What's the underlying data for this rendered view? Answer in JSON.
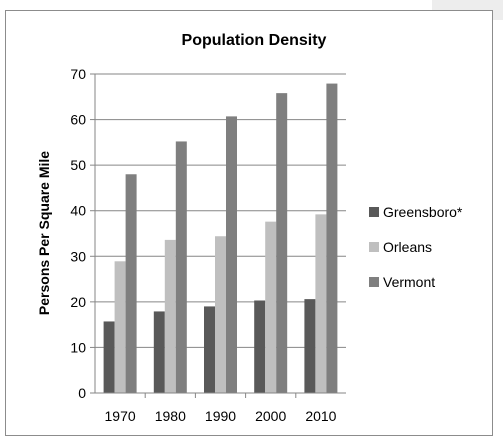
{
  "chart_data": {
    "type": "bar",
    "title": "Population Density",
    "xlabel": "",
    "ylabel": "Persons Per Square Mile",
    "categories": [
      "1970",
      "1980",
      "1990",
      "2000",
      "2010"
    ],
    "ylim": [
      0,
      70
    ],
    "yticks": [
      0,
      10,
      20,
      30,
      40,
      50,
      60,
      70
    ],
    "grid": true,
    "legend": "right",
    "series": [
      {
        "name": "Greensboro*",
        "color": "#595959",
        "values": [
          15.7,
          17.9,
          19.0,
          20.3,
          20.6
        ]
      },
      {
        "name": "Orleans",
        "color": "#bfbfbf",
        "values": [
          28.9,
          33.6,
          34.4,
          37.6,
          39.2
        ]
      },
      {
        "name": "Vermont",
        "color": "#7f7f7f",
        "values": [
          48.0,
          55.2,
          60.7,
          65.8,
          67.9
        ]
      }
    ]
  }
}
